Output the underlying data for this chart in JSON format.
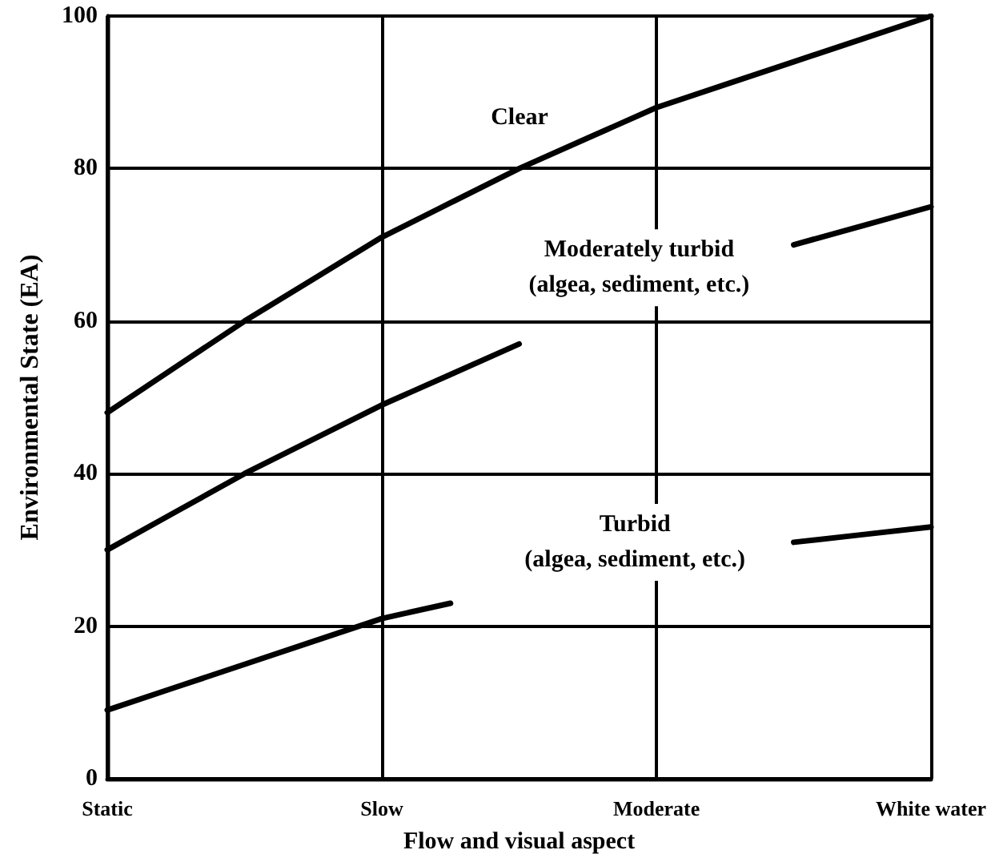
{
  "chart_data": {
    "type": "line",
    "xlabel": "Flow and visual aspect",
    "ylabel": "Environmental State (EA)",
    "categories": [
      "Static",
      null,
      null,
      null,
      "Slow",
      null,
      null,
      null,
      "Moderate",
      null,
      null,
      null,
      "White water"
    ],
    "ylim": [
      0,
      100
    ],
    "yticks": [
      0,
      20,
      40,
      60,
      80,
      100
    ],
    "grid": true,
    "series": [
      {
        "color": "#000000",
        "values": [
          48,
          54,
          60,
          65.5,
          71,
          75.5,
          80,
          84,
          88,
          91,
          94,
          97,
          100
        ]
      },
      {
        "color": "#000000",
        "values": [
          30,
          35,
          40,
          44.5,
          49,
          53,
          57,
          null,
          null,
          null,
          70,
          72.5,
          75
        ]
      },
      {
        "color": "#000000",
        "values": [
          9,
          12,
          15,
          18,
          21,
          23,
          null,
          null,
          null,
          null,
          31,
          32,
          33
        ]
      }
    ],
    "annotations": [
      "Clear",
      "Moderately turbid\n(algea, sediment, etc.)",
      "Turbid\n(algea, sediment, etc.)"
    ]
  }
}
